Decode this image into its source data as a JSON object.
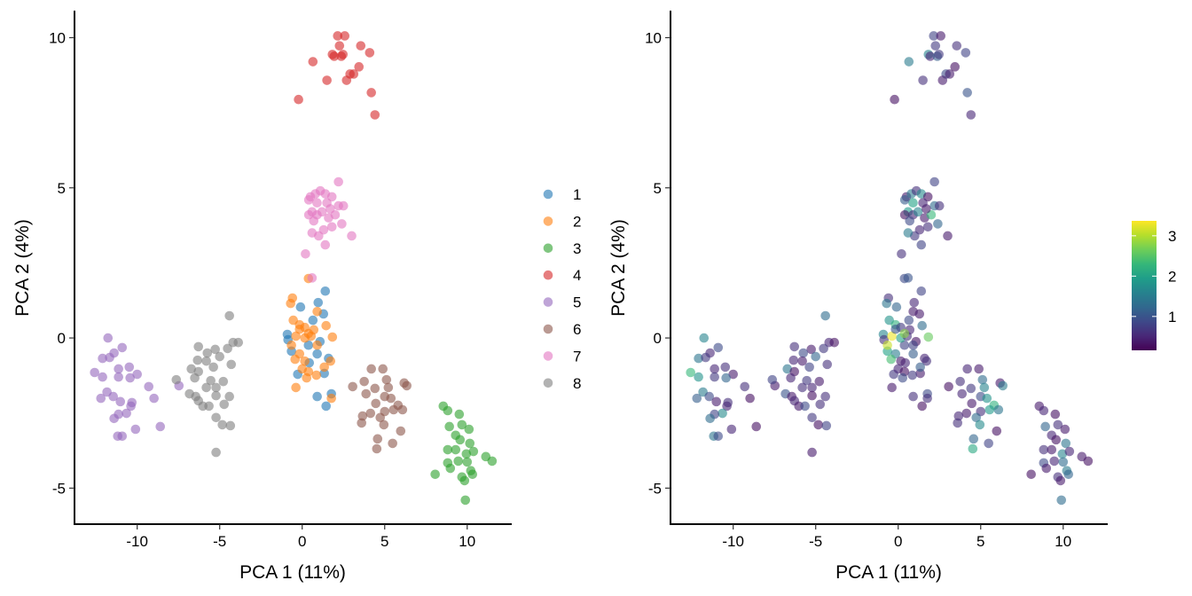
{
  "chart_data": [
    {
      "type": "scatter",
      "xlabel": "PCA 1 (11%)",
      "ylabel": "PCA 2 (4%)",
      "xlim": [
        -13.8,
        12.7
      ],
      "ylim": [
        -6.2,
        10.9
      ],
      "xticks": [
        -10,
        -5,
        0,
        5,
        10
      ],
      "yticks": [
        -5,
        0,
        5,
        10
      ],
      "xtick_labels": [
        "-10",
        "-5",
        "0",
        "5",
        "10"
      ],
      "ytick_labels": [
        "-5",
        "0",
        "5",
        "10"
      ],
      "grid": false,
      "legend_placement": "right",
      "series": [
        {
          "name": "1",
          "color": "#1f77b4",
          "points": [
            [
              1.4,
              1.56
            ],
            [
              0.97,
              1.18
            ],
            [
              -0.1,
              1.03
            ],
            [
              1.29,
              0.8
            ],
            [
              0.65,
              0.59
            ],
            [
              -0.9,
              0.12
            ],
            [
              -0.86,
              -0.06
            ],
            [
              1.08,
              -0.12
            ],
            [
              0.91,
              -0.53
            ],
            [
              1.6,
              -0.68
            ],
            [
              -0.27,
              -1.21
            ],
            [
              1.34,
              -1.18
            ],
            [
              0.91,
              -1.95
            ],
            [
              1.77,
              -1.86
            ],
            [
              1.45,
              -2.27
            ],
            [
              -0.65,
              -0.44
            ],
            [
              0.38,
              -0.24
            ],
            [
              0.43,
              -0.83
            ]
          ]
        },
        {
          "name": "2",
          "color": "#ff7f0e",
          "points": [
            [
              0.38,
              1.98
            ],
            [
              -0.59,
              1.33
            ],
            [
              -0.7,
              1.15
            ],
            [
              0.91,
              0.88
            ],
            [
              -0.54,
              0.59
            ],
            [
              -0.16,
              0.44
            ],
            [
              0.16,
              0.35
            ],
            [
              0.7,
              0.27
            ],
            [
              1.45,
              0.41
            ],
            [
              1.83,
              0.03
            ],
            [
              -0.38,
              0.06
            ],
            [
              0.16,
              0
            ],
            [
              0.54,
              0.06
            ],
            [
              -0.65,
              -0.24
            ],
            [
              0.91,
              -0.24
            ],
            [
              -0.16,
              -0.53
            ],
            [
              -0.43,
              -0.71
            ],
            [
              0.16,
              -0.77
            ],
            [
              1.72,
              -0.77
            ],
            [
              1.34,
              -0.97
            ],
            [
              0,
              -1.03
            ],
            [
              0.38,
              -1.12
            ],
            [
              0.86,
              -1.24
            ],
            [
              0.27,
              -1.33
            ],
            [
              -0.38,
              -1.65
            ],
            [
              1.77,
              -2.01
            ],
            [
              -0.16,
              0.29
            ],
            [
              0.38,
              0.15
            ]
          ]
        },
        {
          "name": "3",
          "color": "#2ca02c",
          "points": [
            [
              8.55,
              -2.27
            ],
            [
              8.82,
              -2.42
            ],
            [
              9.52,
              -2.54
            ],
            [
              8.92,
              -2.95
            ],
            [
              9.68,
              -2.89
            ],
            [
              10.11,
              -3.04
            ],
            [
              9.3,
              -3.24
            ],
            [
              9.57,
              -3.39
            ],
            [
              10.16,
              -3.51
            ],
            [
              8.82,
              -3.72
            ],
            [
              9.3,
              -3.72
            ],
            [
              9.95,
              -3.86
            ],
            [
              10.38,
              -3.78
            ],
            [
              11.13,
              -3.95
            ],
            [
              11.51,
              -4.1
            ],
            [
              8.82,
              -4.16
            ],
            [
              9.46,
              -4.1
            ],
            [
              10.0,
              -4.13
            ],
            [
              8.98,
              -4.34
            ],
            [
              8.06,
              -4.54
            ],
            [
              10.22,
              -4.42
            ],
            [
              9.68,
              -4.63
            ],
            [
              10.32,
              -4.54
            ],
            [
              9.84,
              -4.75
            ],
            [
              9.89,
              -5.4
            ]
          ]
        },
        {
          "name": "4",
          "color": "#d62728",
          "points": [
            [
              -0.22,
              7.94
            ],
            [
              0.65,
              9.2
            ],
            [
              1.5,
              8.58
            ],
            [
              2.15,
              10.06
            ],
            [
              2.58,
              10.06
            ],
            [
              1.83,
              9.44
            ],
            [
              1.94,
              9.38
            ],
            [
              2.37,
              9.38
            ],
            [
              2.47,
              9.44
            ],
            [
              2.9,
              8.79
            ],
            [
              3.12,
              8.79
            ],
            [
              3.44,
              9.03
            ],
            [
              3.55,
              9.73
            ],
            [
              4.09,
              9.5
            ],
            [
              4.19,
              8.17
            ],
            [
              4.41,
              7.43
            ],
            [
              2.69,
              8.58
            ],
            [
              2.26,
              9.73
            ]
          ]
        },
        {
          "name": "5",
          "color": "#9467bd",
          "points": [
            [
              -11.77,
              0
            ],
            [
              -10.91,
              -0.32
            ],
            [
              -11.4,
              -0.5
            ],
            [
              -12.1,
              -0.68
            ],
            [
              -11.67,
              -0.65
            ],
            [
              -12.58,
              -1.15
            ],
            [
              -12.1,
              -1.3
            ],
            [
              -11.13,
              -1.03
            ],
            [
              -10.48,
              -0.97
            ],
            [
              -10.0,
              -1.21
            ],
            [
              -10.43,
              -1.33
            ],
            [
              -11.13,
              -1.3
            ],
            [
              -9.3,
              -1.62
            ],
            [
              -8.98,
              -2.01
            ],
            [
              -11.83,
              -1.8
            ],
            [
              -12.2,
              -2.01
            ],
            [
              -11.45,
              -1.95
            ],
            [
              -11.02,
              -2.12
            ],
            [
              -10.32,
              -2.15
            ],
            [
              -10.38,
              -2.27
            ],
            [
              -10.65,
              -2.51
            ],
            [
              -11.13,
              -2.54
            ],
            [
              -11.4,
              -2.68
            ],
            [
              -10.1,
              -3.04
            ],
            [
              -8.6,
              -2.95
            ],
            [
              -11.18,
              -3.27
            ],
            [
              -10.91,
              -3.27
            ],
            [
              -7.47,
              -1.59
            ]
          ]
        },
        {
          "name": "6",
          "color": "#8c564b",
          "points": [
            [
              4.19,
              -1.03
            ],
            [
              4.89,
              -1.03
            ],
            [
              3.06,
              -1.62
            ],
            [
              3.76,
              -1.45
            ],
            [
              5.11,
              -1.39
            ],
            [
              6.18,
              -1.5
            ],
            [
              6.34,
              -1.59
            ],
            [
              3.87,
              -1.86
            ],
            [
              4.41,
              -1.68
            ],
            [
              5.22,
              -1.65
            ],
            [
              5.0,
              -1.95
            ],
            [
              5.38,
              -2.01
            ],
            [
              4.46,
              -2.18
            ],
            [
              5.81,
              -2.24
            ],
            [
              6.08,
              -2.39
            ],
            [
              5.54,
              -2.39
            ],
            [
              5.0,
              -2.45
            ],
            [
              4.14,
              -2.51
            ],
            [
              4.73,
              -2.65
            ],
            [
              3.66,
              -2.6
            ],
            [
              3.6,
              -2.83
            ],
            [
              4.95,
              -2.89
            ],
            [
              5.97,
              -3.1
            ],
            [
              4.57,
              -3.36
            ],
            [
              5.48,
              -3.51
            ],
            [
              4.52,
              -3.69
            ]
          ]
        },
        {
          "name": "7",
          "color": "#e377c2",
          "points": [
            [
              0.5,
              4.7
            ],
            [
              0.8,
              4.8
            ],
            [
              1.1,
              4.9
            ],
            [
              1.4,
              4.8
            ],
            [
              1.8,
              4.7
            ],
            [
              2.2,
              5.2
            ],
            [
              0.6,
              4.2
            ],
            [
              0.9,
              4.1
            ],
            [
              1.2,
              4.2
            ],
            [
              1.6,
              4.0
            ],
            [
              2.0,
              4.1
            ],
            [
              0.4,
              4.1
            ],
            [
              0.7,
              3.9
            ],
            [
              1.3,
              3.6
            ],
            [
              1.8,
              3.7
            ],
            [
              2.4,
              3.8
            ],
            [
              3.0,
              3.4
            ],
            [
              1.0,
              3.4
            ],
            [
              0.6,
              3.5
            ],
            [
              1.4,
              3.1
            ],
            [
              0.2,
              2.8
            ],
            [
              2.2,
              4.4
            ],
            [
              1.5,
              4.5
            ],
            [
              0.9,
              4.5
            ],
            [
              1.7,
              4.3
            ],
            [
              0.4,
              4.6
            ],
            [
              2.5,
              4.4
            ],
            [
              0.6,
              2.0
            ]
          ]
        },
        {
          "name": "8",
          "color": "#7f7f7f",
          "points": [
            [
              -4.41,
              0.74
            ],
            [
              -6.29,
              -0.29
            ],
            [
              -5.27,
              -0.38
            ],
            [
              -5.75,
              -0.5
            ],
            [
              -4.19,
              -0.15
            ],
            [
              -3.87,
              -0.15
            ],
            [
              -4.52,
              -0.35
            ],
            [
              -5.0,
              -0.62
            ],
            [
              -6.34,
              -0.74
            ],
            [
              -5.81,
              -0.77
            ],
            [
              -4.3,
              -0.88
            ],
            [
              -5.38,
              -0.97
            ],
            [
              -6.72,
              -1.03
            ],
            [
              -6.29,
              -1.12
            ],
            [
              -6.51,
              -1.33
            ],
            [
              -5.54,
              -1.42
            ],
            [
              -4.78,
              -1.45
            ],
            [
              -7.63,
              -1.39
            ],
            [
              -5.81,
              -1.65
            ],
            [
              -5.22,
              -1.65
            ],
            [
              -6.83,
              -1.86
            ],
            [
              -6.45,
              -1.95
            ],
            [
              -5.22,
              -1.92
            ],
            [
              -4.41,
              -1.95
            ],
            [
              -6.29,
              -2.09
            ],
            [
              -6.02,
              -2.27
            ],
            [
              -5.65,
              -2.27
            ],
            [
              -4.73,
              -2.21
            ],
            [
              -5.22,
              -2.65
            ],
            [
              -4.84,
              -2.89
            ],
            [
              -4.35,
              -2.92
            ],
            [
              -5.22,
              -3.81
            ]
          ]
        }
      ]
    },
    {
      "type": "scatter",
      "xlabel": "PCA 1 (11%)",
      "ylabel": "PCA 2 (4%)",
      "xlim": [
        -13.8,
        12.7
      ],
      "ylim": [
        -6.2,
        10.9
      ],
      "xticks": [
        -10,
        -5,
        0,
        5,
        10
      ],
      "yticks": [
        -5,
        0,
        5,
        10
      ],
      "xtick_labels": [
        "-10",
        "-5",
        "0",
        "5",
        "10"
      ],
      "ytick_labels": [
        "-5",
        "0",
        "5",
        "10"
      ],
      "grid": false,
      "points_same_as_left_panel": true,
      "colorscale": "viridis",
      "color_range": [
        0.16,
        3.37
      ],
      "colorbar_ticks": [
        1,
        2,
        3
      ],
      "colorbar_tick_labels": [
        "1",
        "2",
        "3"
      ],
      "legend_placement": "right",
      "color_values": [
        [
          0.8,
          0.5,
          1.2,
          0.4,
          0.9,
          1.6,
          0.6,
          0.3,
          1.1,
          0.5,
          0.7,
          0.4,
          0.6,
          0.9,
          0.3,
          2.0,
          0.8,
          0.5
        ],
        [
          0.9,
          0.6,
          1.4,
          0.4,
          1.8,
          2.2,
          0.7,
          0.5,
          1.3,
          2.6,
          3.3,
          2.0,
          0.6,
          3.1,
          0.8,
          1.5,
          2.4,
          0.4,
          0.6,
          1.1,
          0.5,
          0.3,
          0.7,
          0.9,
          0.4,
          0.6,
          1.0,
          2.8
        ],
        [
          0.4,
          0.5,
          0.3,
          1.2,
          0.6,
          0.4,
          0.5,
          0.3,
          1.4,
          0.6,
          0.4,
          1.6,
          0.5,
          0.4,
          0.3,
          0.9,
          0.5,
          1.3,
          0.4,
          0.3,
          1.5,
          0.6,
          1.2,
          0.4,
          1.3
        ],
        [
          0.3,
          1.5,
          0.6,
          0.8,
          0.4,
          1.6,
          0.5,
          1.1,
          0.7,
          0.9,
          0.4,
          0.3,
          0.6,
          0.8,
          1.0,
          0.5,
          0.4,
          0.7
        ],
        [
          1.6,
          0.9,
          0.5,
          1.4,
          0.7,
          2.3,
          1.8,
          0.5,
          0.6,
          0.4,
          1.2,
          0.7,
          0.6,
          0.3,
          1.5,
          1.1,
          0.9,
          0.4,
          0.6,
          0.5,
          1.7,
          0.8,
          1.3,
          0.5,
          0.3,
          1.4,
          0.9,
          0.4
        ],
        [
          0.5,
          0.4,
          0.3,
          0.6,
          1.3,
          0.4,
          1.5,
          0.5,
          0.7,
          1.6,
          0.9,
          1.8,
          0.4,
          2.2,
          1.4,
          1.9,
          0.6,
          0.4,
          1.3,
          0.5,
          0.6,
          1.7,
          0.3,
          1.2,
          0.8,
          2.1
        ],
        [
          0.4,
          1.5,
          0.6,
          1.7,
          0.3,
          0.8,
          1.9,
          0.5,
          1.6,
          0.4,
          2.3,
          0.3,
          0.9,
          0.5,
          0.6,
          1.2,
          0.4,
          0.7,
          1.5,
          0.8,
          0.6,
          1.3,
          0.5,
          2.0,
          0.4,
          1.1,
          0.6,
          1.0
        ],
        [
          1.3,
          0.6,
          0.4,
          0.9,
          0.5,
          0.3,
          0.7,
          1.2,
          0.5,
          0.4,
          0.6,
          0.8,
          1.4,
          0.3,
          0.5,
          0.7,
          0.4,
          0.8,
          0.6,
          0.5,
          1.0,
          0.4,
          0.3,
          0.6,
          0.5,
          0.4,
          0.9,
          0.6,
          0.7,
          0.3,
          0.8,
          0.4
        ]
      ]
    }
  ]
}
